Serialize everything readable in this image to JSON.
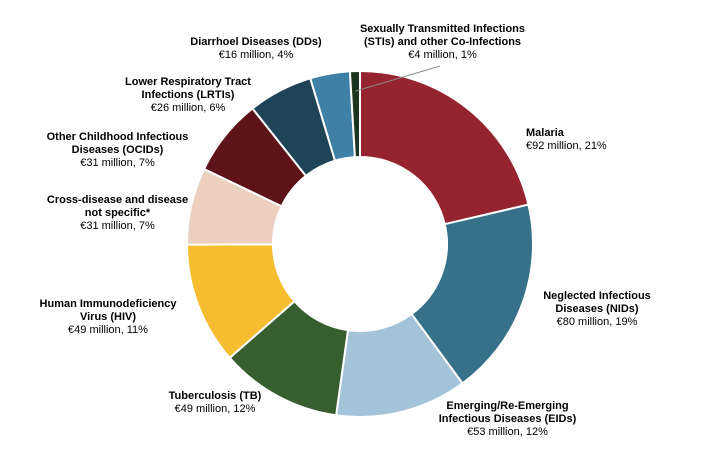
{
  "chart_data": {
    "type": "pie",
    "donut": true,
    "unit": "€ million",
    "slices": [
      {
        "name_lines": [
          "Malaria"
        ],
        "value_text": "€92 million, 21%",
        "value": 92,
        "percent": 21,
        "color": "#962330"
      },
      {
        "name_lines": [
          "Neglected Infectious",
          "Diseases (NIDs)"
        ],
        "value_text": "€80 million, 19%",
        "value": 80,
        "percent": 19,
        "color": "#367189"
      },
      {
        "name_lines": [
          "Emerging/Re-Emerging",
          "Infectious Diseases (EIDs)"
        ],
        "value_text": "€53 million, 12%",
        "value": 53,
        "percent": 12,
        "color": "#a3c3d8"
      },
      {
        "name_lines": [
          "Tuberculosis (TB)"
        ],
        "value_text": "€49 million, 12%",
        "value": 49,
        "percent": 12,
        "color": "#385e30"
      },
      {
        "name_lines": [
          "Human Immunodeficiency",
          "Virus (HIV)"
        ],
        "value_text": "€49 million, 11%",
        "value": 49,
        "percent": 11,
        "color": "#f6bd30"
      },
      {
        "name_lines": [
          "Cross-disease and disease",
          "not specific*"
        ],
        "value_text": "€31 million, 7%",
        "value": 31,
        "percent": 7,
        "color": "#ebcfbf"
      },
      {
        "name_lines": [
          "Other Childhood Infectious",
          "Diseases (OCIDs)"
        ],
        "value_text": "€31 million, 7%",
        "value": 31,
        "percent": 7,
        "color": "#5d1318"
      },
      {
        "name_lines": [
          "Lower Respiratory Tract",
          "Infections (LRTIs)"
        ],
        "value_text": "€26 million, 6%",
        "value": 26,
        "percent": 6,
        "color": "#1f4458"
      },
      {
        "name_lines": [
          "Diarrhoel Diseases (DDs)"
        ],
        "value_text": "€16 million, 4%",
        "value": 16,
        "percent": 4,
        "color": "#3f80a6"
      },
      {
        "name_lines": [
          "Sexually Transmitted Infections",
          "(STIs) and other Co-Infections"
        ],
        "value_text": "€4  million, 1%",
        "value": 4,
        "percent": 1,
        "color": "#1c3520"
      }
    ]
  }
}
